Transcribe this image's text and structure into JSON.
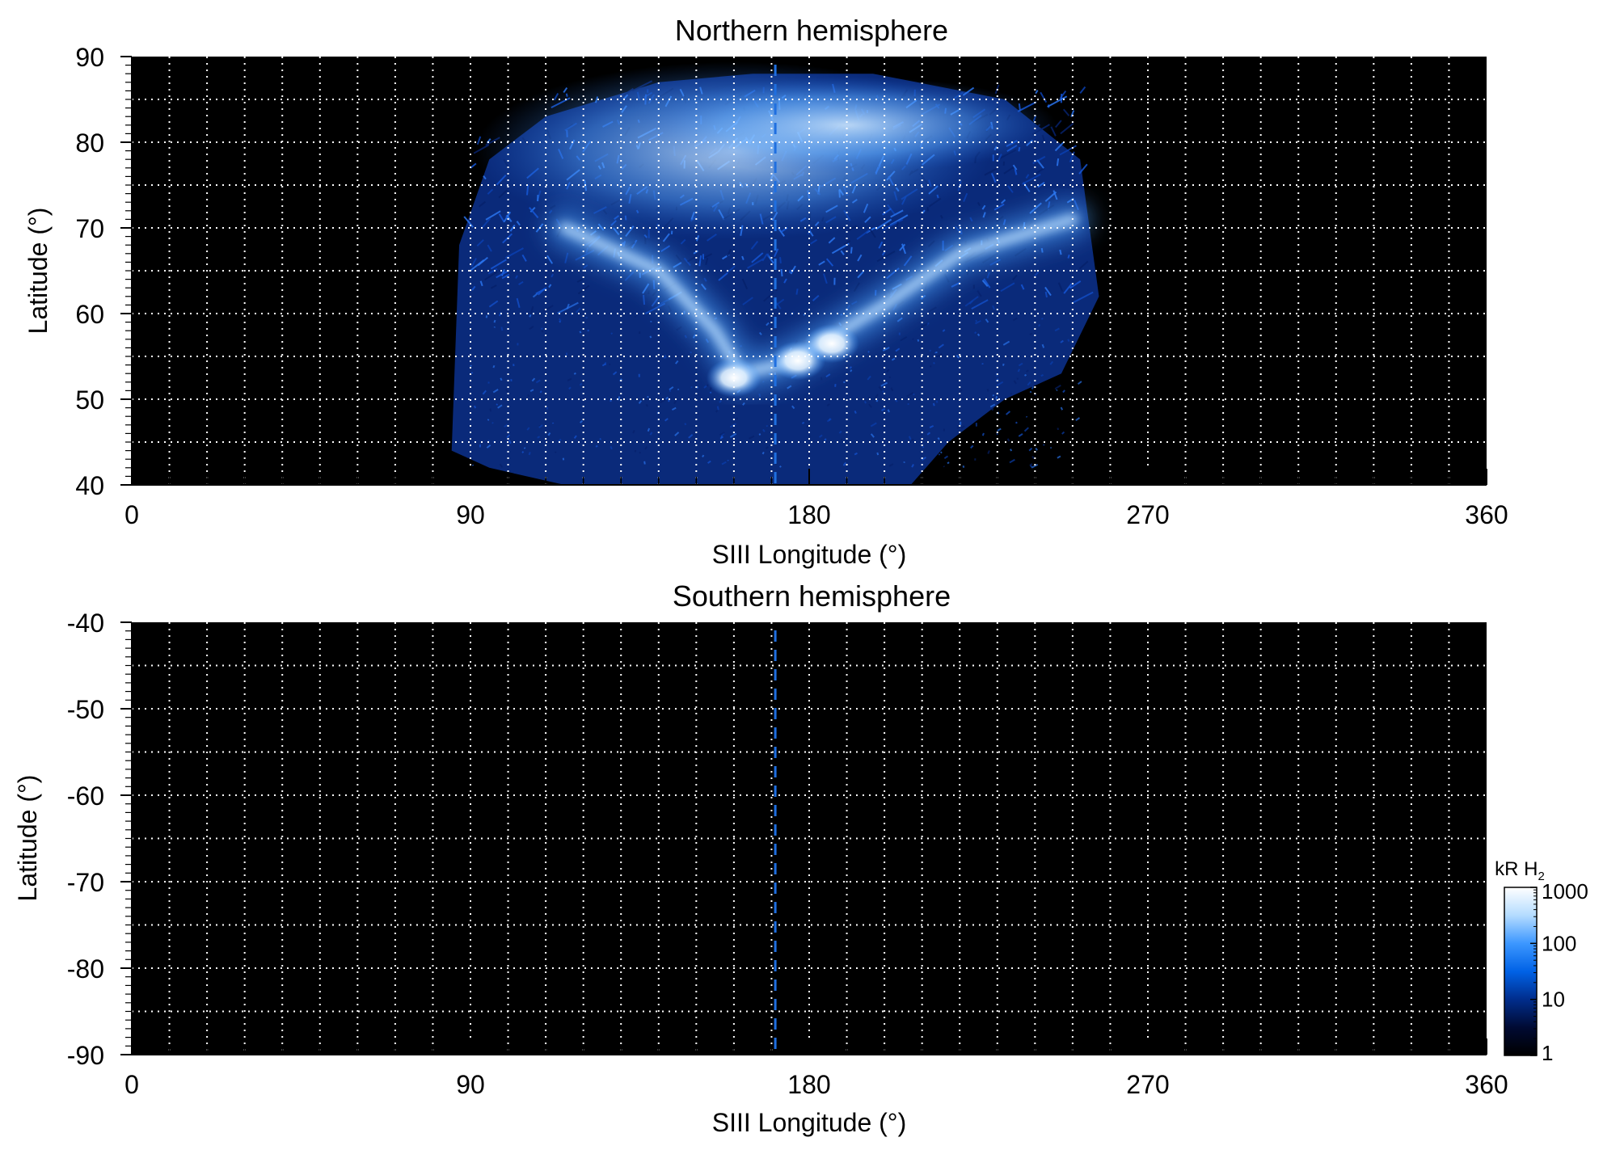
{
  "chart_data": [
    {
      "type": "heatmap",
      "title": "Northern hemisphere",
      "xlabel": "SIII Longitude (°)",
      "ylabel": "Latitude (°)",
      "xlim": [
        0,
        360
      ],
      "ylim": [
        40,
        90
      ],
      "xticks": [
        "0",
        "90",
        "180",
        "270",
        "360"
      ],
      "yticks": [
        "40",
        "50",
        "60",
        "70",
        "80",
        "90"
      ],
      "grid": true,
      "background_color": "#000000",
      "marker_longitude": 171,
      "coverage": {
        "lon_min": 85,
        "lon_max": 257,
        "lat_min_west": 44,
        "lat_max": 88
      },
      "features": [
        {
          "type": "auroral-oval-arc",
          "points": [
            [
              115,
              70
            ],
            [
              140,
              65
            ],
            [
              155,
              58
            ],
            [
              162,
              53
            ],
            [
              172,
              54
            ],
            [
              185,
              57
            ],
            [
              200,
              61
            ],
            [
              220,
              67
            ],
            [
              250,
              71
            ]
          ]
        },
        {
          "type": "bright-spot",
          "lon": 160,
          "lat": 52.5
        },
        {
          "type": "bright-spot",
          "lon": 177,
          "lat": 54.5
        },
        {
          "type": "bright-spot",
          "lon": 186,
          "lat": 56.5
        },
        {
          "type": "polar-emission",
          "lon": 160,
          "lat": 79
        }
      ]
    },
    {
      "type": "heatmap",
      "title": "Southern hemisphere",
      "xlabel": "SIII Longitude (°)",
      "ylabel": "Latitude (°)",
      "xlim": [
        0,
        360
      ],
      "ylim": [
        -90,
        -40
      ],
      "xticks": [
        "0",
        "90",
        "180",
        "270",
        "360"
      ],
      "yticks": [
        "-40",
        "-50",
        "-60",
        "-70",
        "-80",
        "-90"
      ],
      "grid": true,
      "background_color": "#000000",
      "marker_longitude": 171
    }
  ],
  "colorbar": {
    "label": "kR H",
    "label_subscript": "2",
    "scale": "log",
    "range": [
      1,
      1000
    ],
    "ticks": [
      "1",
      "10",
      "100",
      "1000"
    ],
    "colors": [
      "#000000",
      "#000a33",
      "#002d8c",
      "#0062e6",
      "#3c97ff",
      "#b4dcff",
      "#ffffff"
    ]
  }
}
